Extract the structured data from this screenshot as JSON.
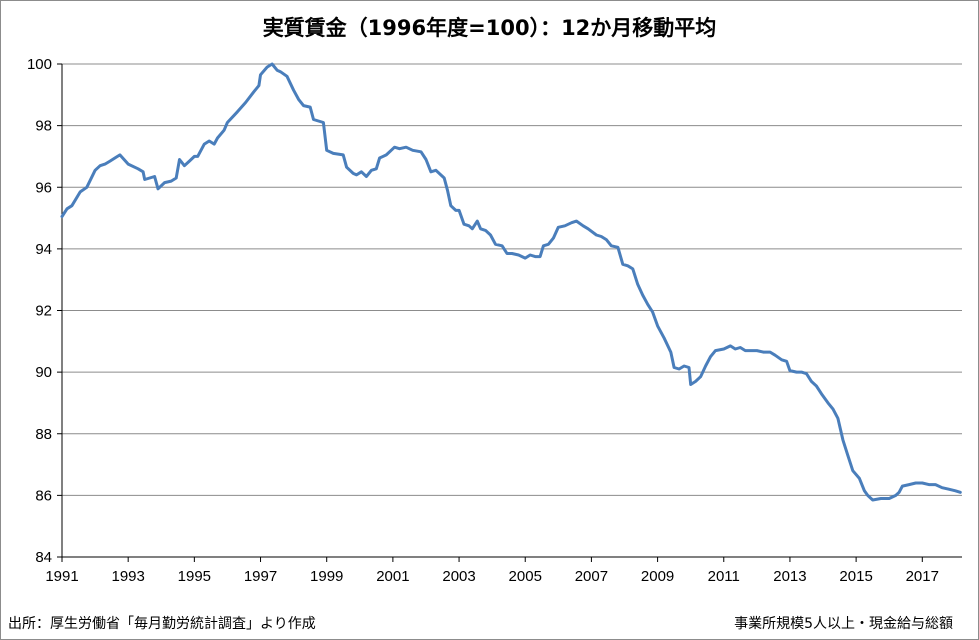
{
  "chart_data": {
    "type": "line",
    "title": "実質賃金（1996年度=100）：12か月移動平均",
    "xlabel": "",
    "ylabel": "",
    "xlim": [
      1991,
      2018.2
    ],
    "ylim": [
      84,
      100
    ],
    "yticks": [
      84,
      86,
      88,
      90,
      92,
      94,
      96,
      98,
      100
    ],
    "xticks": [
      1991,
      1993,
      1995,
      1997,
      1999,
      2001,
      2003,
      2005,
      2007,
      2009,
      2011,
      2013,
      2015,
      2017
    ],
    "grid": true,
    "legend": "none",
    "colors": {
      "line": "#4a7ebb",
      "grid": "#8c8c8c"
    },
    "series": [
      {
        "x": [
          1991.0,
          1991.15,
          1991.3,
          1991.55,
          1991.75,
          1992.0,
          1992.15,
          1992.3,
          1992.45,
          1992.6,
          1992.75,
          1993.0,
          1993.3,
          1993.45,
          1993.5,
          1993.65,
          1993.8,
          1993.9,
          1994.1,
          1994.3,
          1994.45,
          1994.55,
          1994.7,
          1994.85,
          1995.0,
          1995.1,
          1995.3,
          1995.45,
          1995.6,
          1995.7,
          1995.9,
          1996.0,
          1996.3,
          1996.55,
          1996.8,
          1996.95,
          1997.0,
          1997.2,
          1997.35,
          1997.5,
          1997.6,
          1997.8,
          1998.0,
          1998.15,
          1998.3,
          1998.5,
          1998.6,
          1998.75,
          1998.9,
          1999.0,
          1999.2,
          1999.5,
          1999.6,
          1999.8,
          1999.9,
          2000.05,
          2000.2,
          2000.35,
          2000.5,
          2000.6,
          2000.8,
          2000.95,
          2001.05,
          2001.2,
          2001.4,
          2001.6,
          2001.85,
          2002.0,
          2002.15,
          2002.3,
          2002.55,
          2002.65,
          2002.75,
          2002.9,
          2003.0,
          2003.15,
          2003.3,
          2003.4,
          2003.55,
          2003.65,
          2003.8,
          2003.95,
          2004.1,
          2004.3,
          2004.45,
          2004.6,
          2004.8,
          2005.0,
          2005.15,
          2005.3,
          2005.45,
          2005.55,
          2005.7,
          2005.85,
          2006.0,
          2006.2,
          2006.4,
          2006.55,
          2006.75,
          2006.9,
          2007.15,
          2007.3,
          2007.45,
          2007.6,
          2007.8,
          2007.95,
          2008.1,
          2008.25,
          2008.4,
          2008.55,
          2008.7,
          2008.85,
          2009.0,
          2009.2,
          2009.4,
          2009.5,
          2009.65,
          2009.8,
          2009.95,
          2010.0,
          2010.15,
          2010.3,
          2010.45,
          2010.6,
          2010.75,
          2011.0,
          2011.2,
          2011.35,
          2011.5,
          2011.65,
          2011.8,
          2012.0,
          2012.2,
          2012.4,
          2012.55,
          2012.75,
          2012.9,
          2013.0,
          2013.2,
          2013.35,
          2013.5,
          2013.65,
          2013.8,
          2013.95,
          2014.15,
          2014.3,
          2014.45,
          2014.6,
          2014.75,
          2014.9,
          2015.1,
          2015.25,
          2015.35,
          2015.5,
          2015.75,
          2015.85,
          2016.0,
          2016.2,
          2016.3,
          2016.4,
          2016.6,
          2016.8,
          2017.0,
          2017.2,
          2017.4,
          2017.6,
          2017.8,
          2018.0,
          2018.15
        ],
        "values": [
          95.05,
          95.3,
          95.4,
          95.85,
          96.0,
          96.55,
          96.7,
          96.75,
          96.85,
          96.95,
          97.05,
          96.75,
          96.6,
          96.5,
          96.25,
          96.3,
          96.35,
          95.95,
          96.15,
          96.2,
          96.3,
          96.9,
          96.7,
          96.85,
          97.0,
          97.0,
          97.4,
          97.5,
          97.4,
          97.6,
          97.85,
          98.1,
          98.45,
          98.75,
          99.1,
          99.3,
          99.65,
          99.9,
          100.0,
          99.8,
          99.75,
          99.6,
          99.15,
          98.85,
          98.65,
          98.6,
          98.2,
          98.15,
          98.1,
          97.2,
          97.1,
          97.05,
          96.65,
          96.45,
          96.4,
          96.5,
          96.35,
          96.55,
          96.6,
          96.95,
          97.05,
          97.2,
          97.3,
          97.25,
          97.3,
          97.2,
          97.15,
          96.9,
          96.5,
          96.55,
          96.3,
          95.9,
          95.4,
          95.25,
          95.25,
          94.8,
          94.75,
          94.65,
          94.9,
          94.65,
          94.6,
          94.45,
          94.15,
          94.1,
          93.85,
          93.85,
          93.8,
          93.7,
          93.8,
          93.75,
          93.75,
          94.1,
          94.15,
          94.35,
          94.7,
          94.75,
          94.85,
          94.9,
          94.75,
          94.65,
          94.45,
          94.4,
          94.3,
          94.1,
          94.05,
          93.5,
          93.45,
          93.35,
          92.85,
          92.5,
          92.2,
          91.95,
          91.5,
          91.1,
          90.65,
          90.15,
          90.1,
          90.2,
          90.15,
          89.6,
          89.7,
          89.85,
          90.2,
          90.5,
          90.7,
          90.75,
          90.85,
          90.75,
          90.8,
          90.7,
          90.7,
          90.7,
          90.65,
          90.65,
          90.55,
          90.4,
          90.35,
          90.05,
          90.0,
          90.0,
          89.95,
          89.7,
          89.55,
          89.3,
          89.0,
          88.8,
          88.5,
          87.8,
          87.3,
          86.8,
          86.55,
          86.15,
          86.0,
          85.85,
          85.9,
          85.9,
          85.9,
          86.0,
          86.1,
          86.3,
          86.35,
          86.4,
          86.4,
          86.35,
          86.35,
          86.25,
          86.2,
          86.15,
          86.1
        ]
      }
    ]
  },
  "footer": {
    "source": "出所：厚生労働省「毎月勤労統計調査」より作成",
    "scope": "事業所規模5人以上・現金給与総額"
  }
}
